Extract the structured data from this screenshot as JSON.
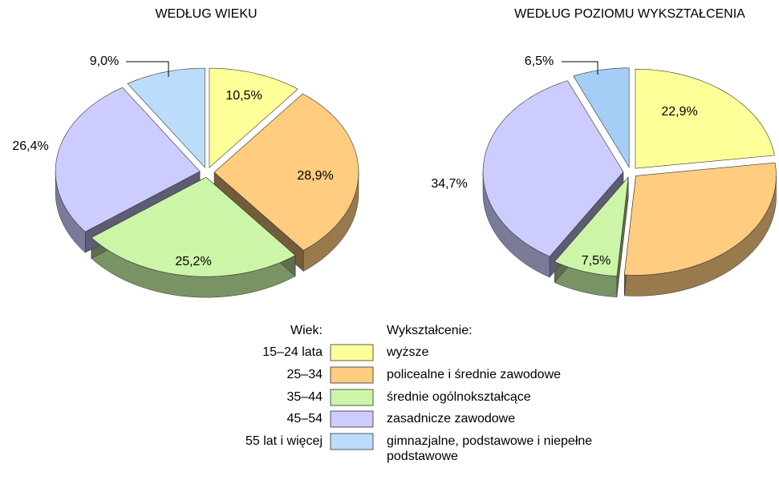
{
  "chart_data": [
    {
      "type": "pie",
      "title": "WEDŁUG WIEKU",
      "legend_title": "Wiek:",
      "categories": [
        "15–24 lata",
        "25–34",
        "35–44",
        "45–54",
        "55 lat i więcej"
      ],
      "values": [
        10.5,
        28.9,
        25.2,
        26.4,
        9.0
      ],
      "value_labels": [
        "10,5%",
        "28,9%",
        "25,2%",
        "26,4%",
        "9,0%"
      ],
      "colors": [
        "#ffff99",
        "#ffcc80",
        "#ccf5a8",
        "#ccccff",
        "#bcdcfb"
      ]
    },
    {
      "type": "pie",
      "title": "WEDŁUG POZIOMU WYKSZTAŁCENIA",
      "legend_title": "Wykształcenie:",
      "categories": [
        "wyższe",
        "policealne i średnie zawodowe",
        "średnie ogólnokształcące",
        "zasadnicze zawodowe",
        "gimnazjalne, podstawowe i niepełne podstawowe"
      ],
      "values": [
        22.9,
        28.4,
        7.5,
        34.7,
        6.5
      ],
      "value_labels": [
        "22,9%",
        null,
        "7,5%",
        "34,7%",
        "6,5%"
      ],
      "colors": [
        "#ffff99",
        "#ffcc80",
        "#ccf5a8",
        "#ccccff",
        "#a6cdf5"
      ]
    }
  ]
}
